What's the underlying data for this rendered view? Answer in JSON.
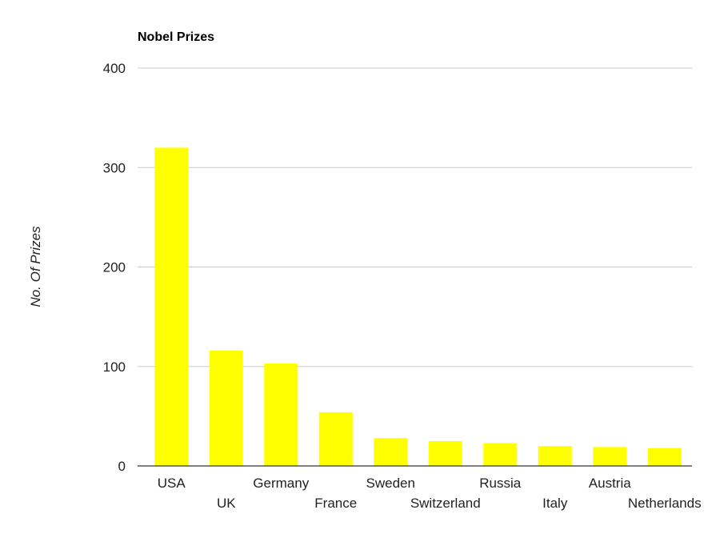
{
  "chart_data": {
    "type": "bar",
    "title": "Nobel Prizes",
    "xlabel": "",
    "ylabel": "No. Of Prizes",
    "categories": [
      "USA",
      "UK",
      "Germany",
      "France",
      "Sweden",
      "Switzerland",
      "Russia",
      "Italy",
      "Austria",
      "Netherlands"
    ],
    "values": [
      320,
      116,
      103,
      54,
      28,
      25,
      23,
      20,
      19,
      18
    ],
    "ylim": [
      0,
      400
    ],
    "yticks": [
      0,
      100,
      200,
      300,
      400
    ],
    "ytick_labels": [
      "0",
      "100",
      "200",
      "300",
      "400"
    ],
    "grid": true,
    "legend": "none",
    "colors": {
      "bar": "#ffff00",
      "grid": "#cccccc",
      "axis": "#333333"
    }
  }
}
